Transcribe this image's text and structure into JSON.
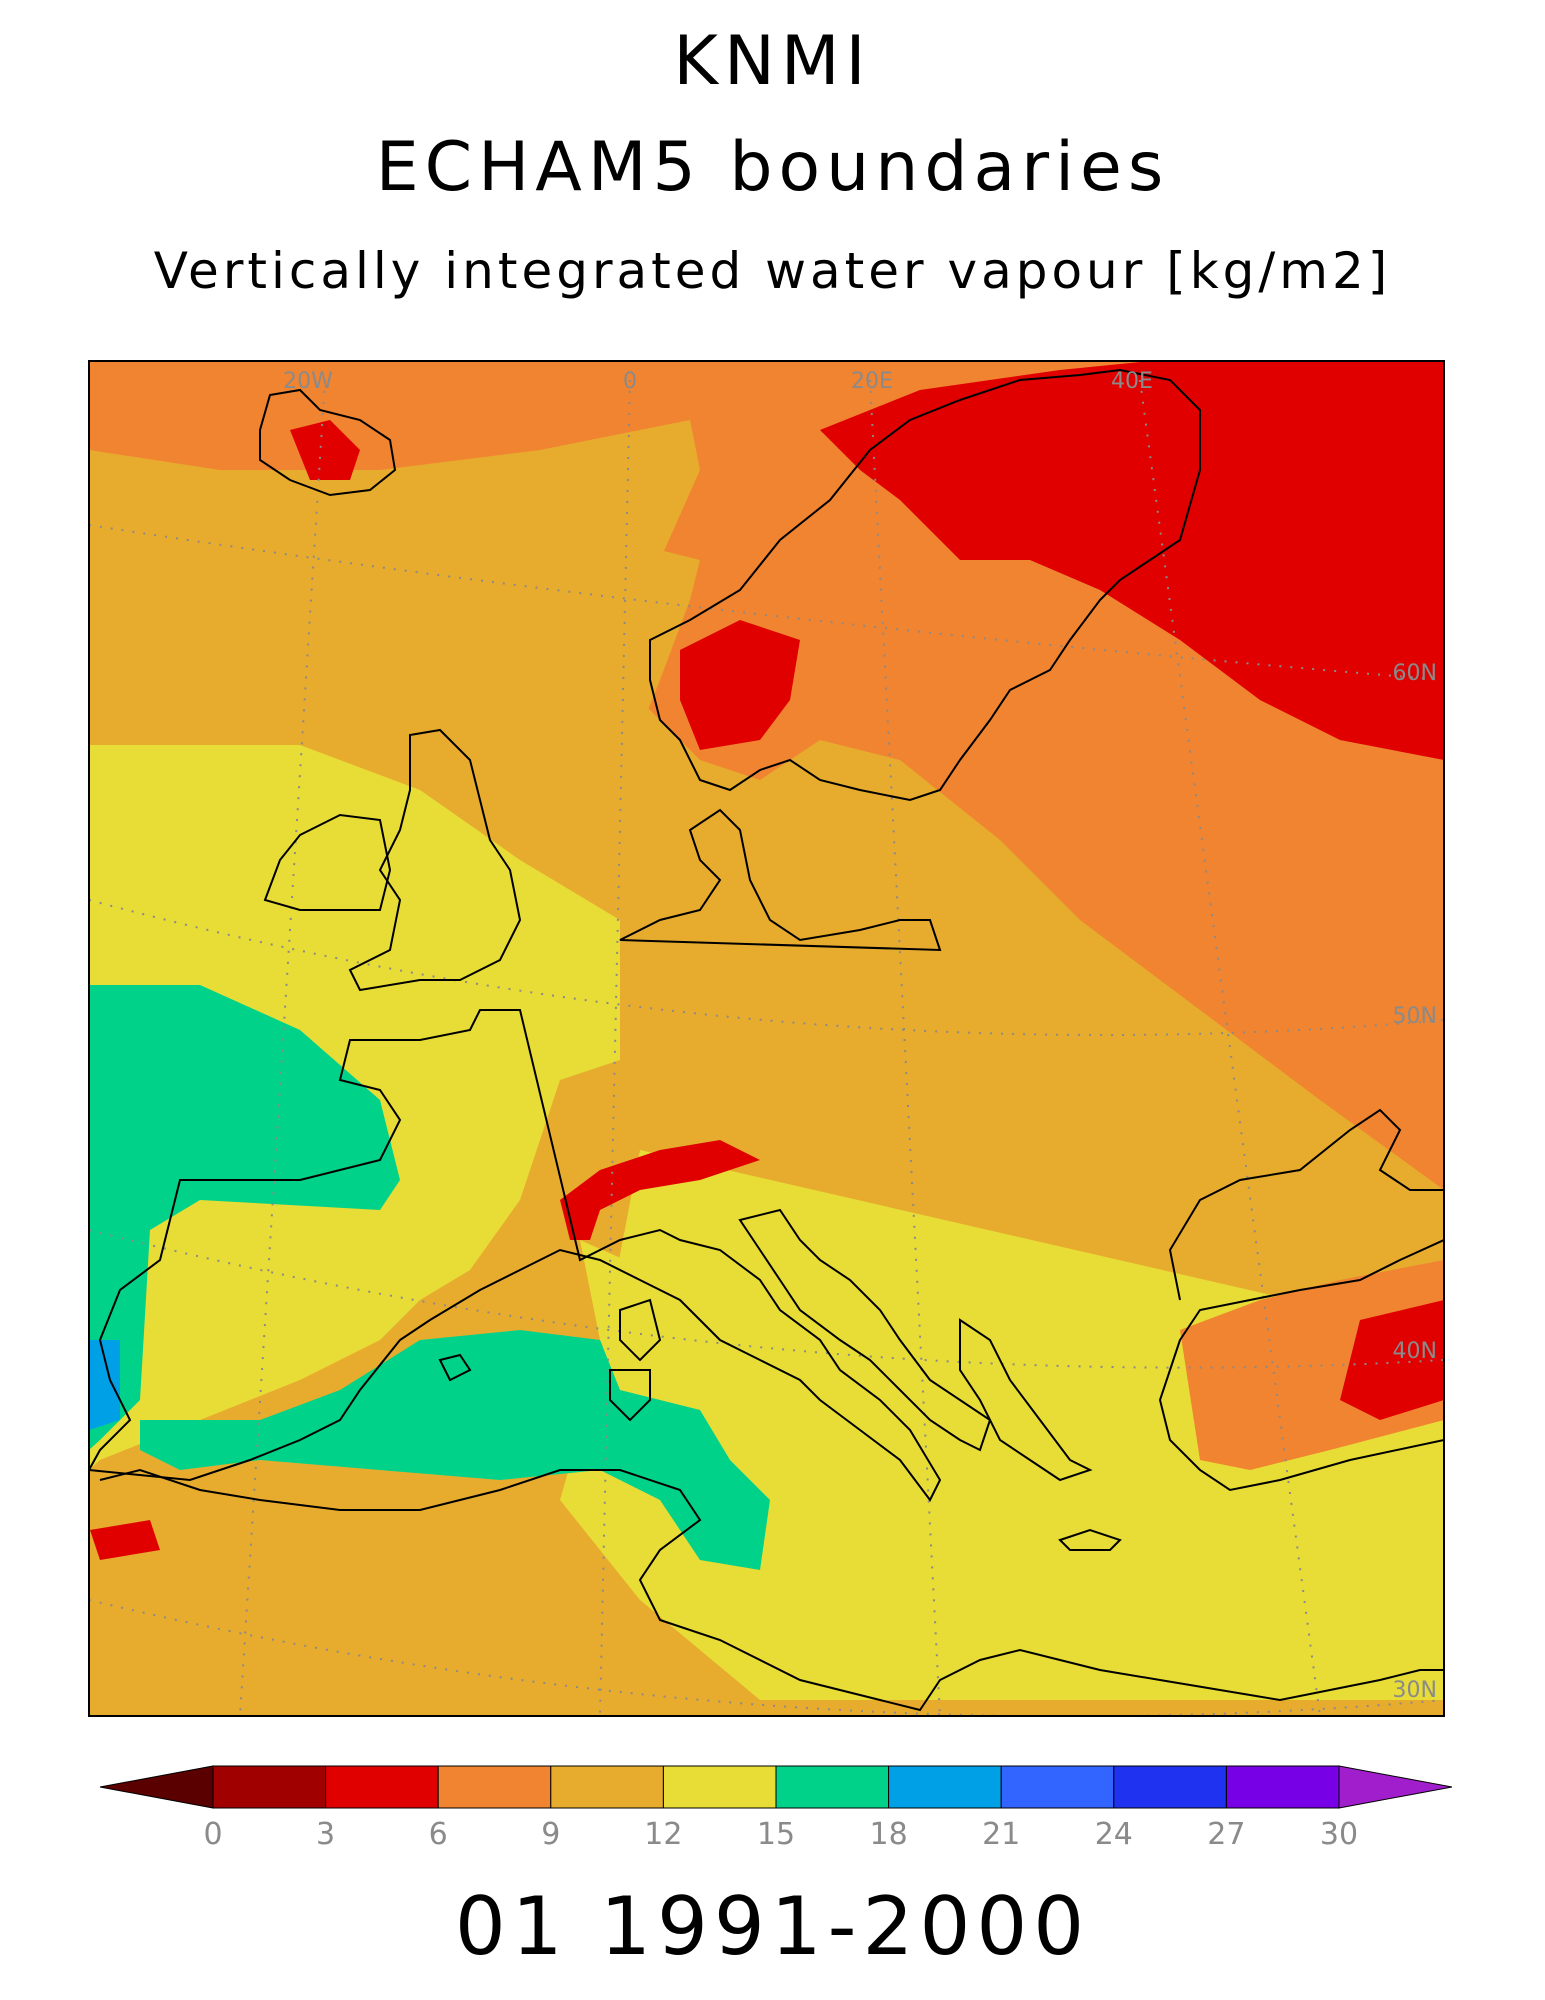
{
  "header": {
    "line1": "KNMI",
    "line2": "ECHAM5 boundaries",
    "line3": "Vertically integrated water vapour [kg/m2]"
  },
  "footer": {
    "period": "01 1991-2000"
  },
  "map": {
    "grid_labels": {
      "lon_20w": "20W",
      "lon_0": "0",
      "lon_20e": "20E",
      "lon_40e": "40E",
      "lat_60n": "60N",
      "lat_50n": "50N",
      "lat_40n": "40N",
      "lat_30n": "30N"
    },
    "colors": {
      "background": "#e7ac2e",
      "ocean_frame": "#ffffff"
    }
  },
  "colorbar": {
    "ticks": [
      "0",
      "3",
      "6",
      "9",
      "12",
      "15",
      "18",
      "21",
      "24",
      "27",
      "30"
    ],
    "colors": [
      "#5a0000",
      "#a00000",
      "#e00000",
      "#f08430",
      "#e7ac2e",
      "#e8dc36",
      "#00d28a",
      "#00a0e6",
      "#3264ff",
      "#1e32f0",
      "#7800e6",
      "#a01ecc"
    ]
  }
}
